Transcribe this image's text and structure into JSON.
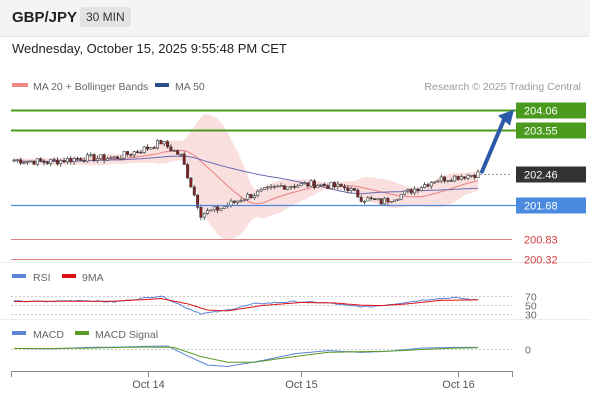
{
  "header": {
    "pair": "GBP/JPY",
    "timeframe": "30 MIN",
    "datetime": "Wednesday, October 15, 2025 9:55:48 PM CET"
  },
  "legend": {
    "ma20": "MA 20 + Bollinger Bands",
    "ma50": "MA 50",
    "credit": "Research © 2025 Trading Central",
    "rsi": "RSI",
    "rsi_ma": "9MA",
    "macd": "MACD",
    "macd_signal": "MACD Signal"
  },
  "colors": {
    "resistance": "#4a9a1e",
    "support": "#4a8be0",
    "target_red": "#e08080",
    "current": "#333333",
    "candle_up": "#ffffff",
    "candle_down": "#8b1e1e",
    "bollinger": "#f6c9c9",
    "ma20": "#e88080",
    "ma50": "#6a6ab0",
    "rsi": "#5b84d6",
    "rsi_ma": "#d11",
    "macd": "#5b84d6",
    "macd_signal": "#5a9a24",
    "arrow": "#2b5aa8"
  },
  "chart_data": [
    {
      "type": "candlestick",
      "title": "GBP/JPY 30 MIN",
      "x_ticks": [
        "Oct 14",
        "Oct 15",
        "Oct 16"
      ],
      "ylim": [
        200.25,
        204.3
      ],
      "levels": [
        {
          "label": "204.06",
          "value": 204.06,
          "style": "resistance"
        },
        {
          "label": "203.55",
          "value": 203.55,
          "style": "resistance"
        },
        {
          "label": "202.46",
          "value": 202.46,
          "style": "current"
        },
        {
          "label": "201.68",
          "value": 201.68,
          "style": "support"
        },
        {
          "label": "200.83",
          "value": 200.83,
          "style": "target_red"
        },
        {
          "label": "200.32",
          "value": 200.32,
          "style": "target_red"
        }
      ],
      "close_path": [
        {
          "i": 0,
          "v": 202.8
        },
        {
          "i": 10,
          "v": 202.75
        },
        {
          "i": 20,
          "v": 202.85
        },
        {
          "i": 30,
          "v": 202.85
        },
        {
          "i": 40,
          "v": 203.1
        },
        {
          "i": 44,
          "v": 203.25
        },
        {
          "i": 50,
          "v": 202.9
        },
        {
          "i": 56,
          "v": 201.45
        },
        {
          "i": 62,
          "v": 201.6
        },
        {
          "i": 70,
          "v": 201.9
        },
        {
          "i": 80,
          "v": 202.15
        },
        {
          "i": 90,
          "v": 202.2
        },
        {
          "i": 100,
          "v": 202.1
        },
        {
          "i": 104,
          "v": 201.85
        },
        {
          "i": 110,
          "v": 201.75
        },
        {
          "i": 118,
          "v": 202.0
        },
        {
          "i": 126,
          "v": 202.3
        },
        {
          "i": 134,
          "v": 202.4
        },
        {
          "i": 139,
          "v": 202.46
        }
      ],
      "forecast_arrow": {
        "from": 202.46,
        "to": 204.06
      }
    },
    {
      "type": "line",
      "title": "RSI",
      "levels": [
        70,
        50,
        30
      ],
      "series": [
        {
          "name": "RSI",
          "style": "rsi",
          "points": [
            [
              0,
              58
            ],
            [
              10,
              57
            ],
            [
              20,
              60
            ],
            [
              30,
              56
            ],
            [
              40,
              66
            ],
            [
              44,
              70
            ],
            [
              52,
              42
            ],
            [
              56,
              30
            ],
            [
              62,
              35
            ],
            [
              72,
              52
            ],
            [
              84,
              57
            ],
            [
              94,
              54
            ],
            [
              100,
              48
            ],
            [
              106,
              45
            ],
            [
              114,
              52
            ],
            [
              124,
              62
            ],
            [
              132,
              66
            ],
            [
              139,
              60
            ]
          ]
        },
        {
          "name": "9MA",
          "style": "rsi_ma",
          "points": [
            [
              0,
              57
            ],
            [
              10,
              58
            ],
            [
              20,
              58
            ],
            [
              30,
              58
            ],
            [
              40,
              62
            ],
            [
              44,
              64
            ],
            [
              52,
              52
            ],
            [
              58,
              38
            ],
            [
              64,
              36
            ],
            [
              74,
              48
            ],
            [
              86,
              55
            ],
            [
              96,
              54
            ],
            [
              104,
              49
            ],
            [
              110,
              48
            ],
            [
              118,
              52
            ],
            [
              128,
              60
            ],
            [
              139,
              61
            ]
          ]
        }
      ]
    },
    {
      "type": "line",
      "title": "MACD",
      "levels": [
        0
      ],
      "ylim": [
        -0.6,
        0.25
      ],
      "series": [
        {
          "name": "MACD",
          "style": "macd",
          "points": [
            [
              0,
              0.01
            ],
            [
              12,
              0.0
            ],
            [
              22,
              0.04
            ],
            [
              32,
              0.05
            ],
            [
              40,
              0.07
            ],
            [
              46,
              0.08
            ],
            [
              52,
              -0.2
            ],
            [
              58,
              -0.46
            ],
            [
              64,
              -0.5
            ],
            [
              74,
              -0.34
            ],
            [
              84,
              -0.14
            ],
            [
              94,
              -0.05
            ],
            [
              104,
              -0.1
            ],
            [
              112,
              -0.07
            ],
            [
              122,
              0.02
            ],
            [
              132,
              0.04
            ],
            [
              139,
              0.04
            ]
          ]
        },
        {
          "name": "MACD Signal",
          "style": "macd_signal",
          "points": [
            [
              0,
              0.01
            ],
            [
              12,
              0.01
            ],
            [
              22,
              0.02
            ],
            [
              32,
              0.04
            ],
            [
              40,
              0.05
            ],
            [
              48,
              0.04
            ],
            [
              56,
              -0.22
            ],
            [
              64,
              -0.38
            ],
            [
              72,
              -0.38
            ],
            [
              84,
              -0.22
            ],
            [
              94,
              -0.1
            ],
            [
              104,
              -0.08
            ],
            [
              112,
              -0.07
            ],
            [
              122,
              -0.02
            ],
            [
              132,
              0.02
            ],
            [
              139,
              0.03
            ]
          ]
        }
      ]
    }
  ]
}
